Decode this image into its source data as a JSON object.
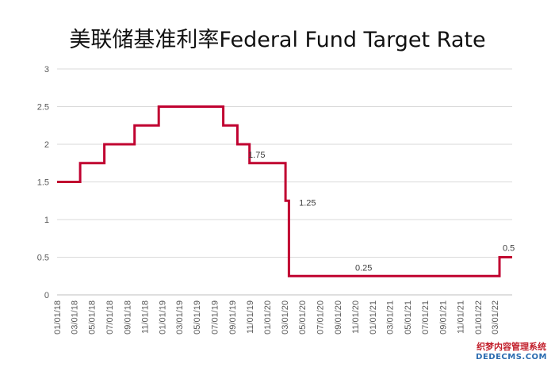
{
  "chart_data": {
    "type": "line",
    "title": "美联储基准利率Federal Fund Target Rate",
    "xlabel": "",
    "ylabel": "",
    "ylim": [
      0,
      3
    ],
    "y_ticks": [
      "0",
      "0.5",
      "1",
      "1.5",
      "2",
      "2.5",
      "3"
    ],
    "grid": true,
    "x_tick_labels": [
      "01/01/18",
      "03/01/18",
      "05/01/18",
      "07/01/18",
      "09/01/18",
      "11/01/18",
      "01/01/19",
      "03/01/19",
      "05/01/19",
      "07/01/19",
      "09/01/19",
      "11/01/19",
      "01/01/20",
      "03/01/20",
      "05/01/20",
      "07/01/20",
      "09/01/20",
      "11/01/20",
      "01/01/21",
      "03/01/21",
      "05/01/21",
      "07/01/21",
      "09/01/21",
      "11/01/21",
      "01/01/22",
      "03/01/22"
    ],
    "series": [
      {
        "color": "#c00030",
        "points": [
          {
            "x": "2018-01-01",
            "y": 1.5
          },
          {
            "x": "2018-03-22",
            "y": 1.5
          },
          {
            "x": "2018-03-22",
            "y": 1.75
          },
          {
            "x": "2018-06-14",
            "y": 1.75
          },
          {
            "x": "2018-06-14",
            "y": 2.0
          },
          {
            "x": "2018-09-27",
            "y": 2.0
          },
          {
            "x": "2018-09-27",
            "y": 2.25
          },
          {
            "x": "2018-12-20",
            "y": 2.25
          },
          {
            "x": "2018-12-20",
            "y": 2.5
          },
          {
            "x": "2019-08-01",
            "y": 2.5
          },
          {
            "x": "2019-08-01",
            "y": 2.25
          },
          {
            "x": "2019-09-19",
            "y": 2.25
          },
          {
            "x": "2019-09-19",
            "y": 2.0
          },
          {
            "x": "2019-10-31",
            "y": 2.0
          },
          {
            "x": "2019-10-31",
            "y": 1.75
          },
          {
            "x": "2020-03-04",
            "y": 1.75
          },
          {
            "x": "2020-03-04",
            "y": 1.25
          },
          {
            "x": "2020-03-16",
            "y": 1.25
          },
          {
            "x": "2020-03-16",
            "y": 0.25
          },
          {
            "x": "2022-03-17",
            "y": 0.25
          },
          {
            "x": "2022-03-17",
            "y": 0.5
          },
          {
            "x": "2022-04-30",
            "y": 0.5
          }
        ]
      }
    ],
    "annotations": [
      {
        "text": "1.75",
        "x": "2020-01-10",
        "y": 1.75
      },
      {
        "text": "1.25",
        "x": "2020-03-04",
        "y": 1.25
      },
      {
        "text": "0.25",
        "x": "2021-02-01",
        "y": 0.25
      },
      {
        "text": "0.5",
        "x": "2022-03-17",
        "y": 0.5
      }
    ]
  },
  "watermark": {
    "line1": "织梦内容管理系统",
    "line2": "DEDECMS.COM"
  }
}
